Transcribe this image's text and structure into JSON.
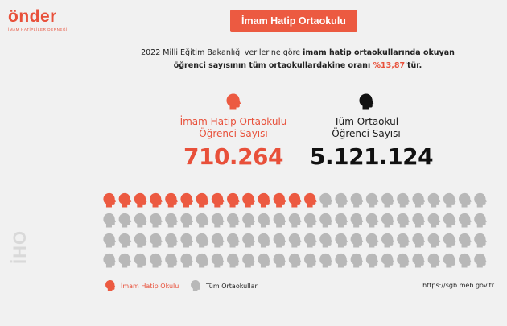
{
  "logo": {
    "word": "önder",
    "subtitle": "İMAM HATİPLİLER DERNEĞİ"
  },
  "badge": {
    "title": "İmam Hatip Ortaokulu"
  },
  "intro": {
    "part1": "2022 Milli Eğitim Bakanlığı verilerine göre ",
    "bold1": "imam hatip ortaokullarında okuyan öğrenci sayısının tüm ortaokullardakine oranı ",
    "highlight": "%13,87",
    "bold2": "'tür."
  },
  "stats": {
    "imam_hatip": {
      "label_line1": "İmam Hatip Ortaokulu",
      "label_line2": "Öğrenci Sayısı",
      "value": "710.264"
    },
    "total": {
      "label_line1": "Tüm Ortaokul",
      "label_line2": "Öğrenci Sayısı",
      "value": "5.121.124"
    }
  },
  "legend": {
    "imam_hatip": "İmam Hatip Okulu",
    "total": "Tüm Ortaokullar"
  },
  "source": "https://sgb.meb.gov.tr",
  "side_mark": "İHO",
  "colors": {
    "accent": "#ec5a41",
    "gray_head": "#b8b8b8",
    "dark_head": "#111111"
  },
  "icons": {
    "head": "head-profile-icon"
  },
  "chart_data": {
    "type": "pictogram",
    "series": [
      {
        "name": "İmam Hatip Okulu",
        "value": 710264,
        "icons": 14,
        "color": "#ec5a41"
      },
      {
        "name": "Tüm Ortaokullar",
        "value": 5121124,
        "icons": 100,
        "color": "#b8b8b8"
      }
    ],
    "share_percent": 13.87,
    "grid": {
      "rows": 4,
      "columns": 25
    }
  }
}
